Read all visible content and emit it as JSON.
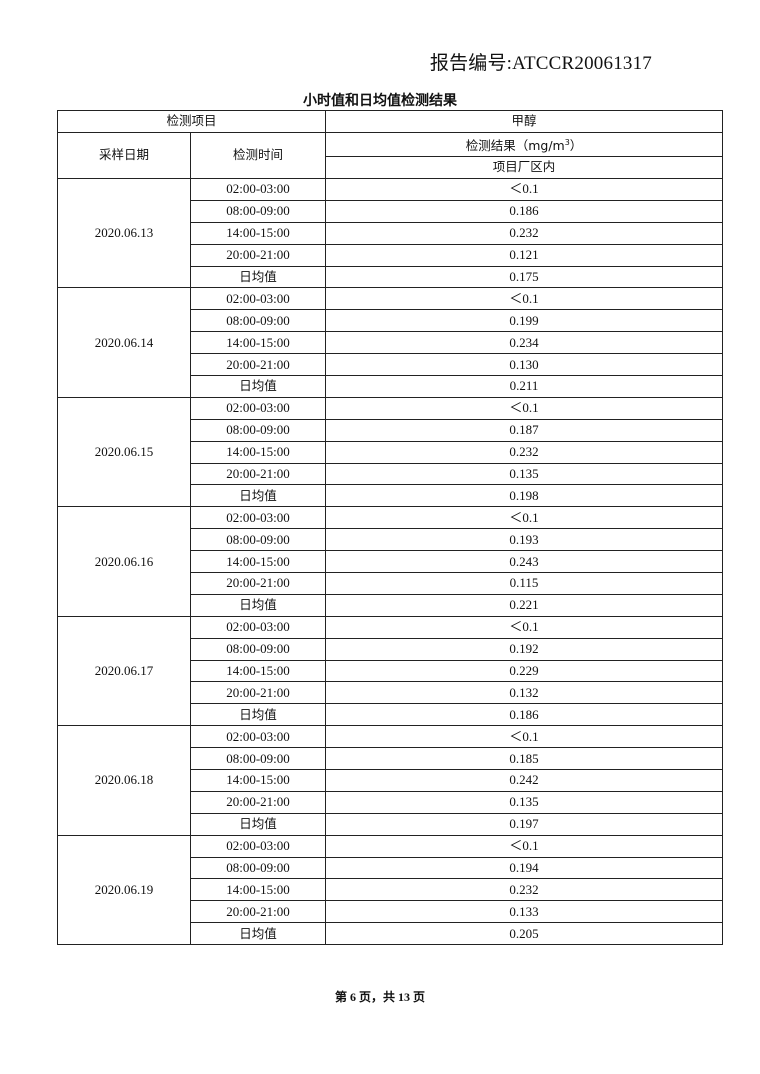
{
  "report_number": "报告编号:ATCCR20061317",
  "table_title": "小时值和日均值检测结果",
  "header": {
    "item_label": "检测项目",
    "substance": "甲醇",
    "sampling_date": "采样日期",
    "test_time": "检测时间",
    "result_label": "检测结果（mg/m",
    "result_unit_sup": "3",
    "result_label_end": "）",
    "location": "项目厂区内"
  },
  "daily_avg_label": "日均值",
  "groups": [
    {
      "date": "2020.06.13",
      "rows": [
        [
          "02:00-03:00",
          "＜0.1"
        ],
        [
          "08:00-09:00",
          "0.186"
        ],
        [
          "14:00-15:00",
          "0.232"
        ],
        [
          "20:00-21:00",
          "0.121"
        ]
      ],
      "avg": "0.175"
    },
    {
      "date": "2020.06.14",
      "rows": [
        [
          "02:00-03:00",
          "＜0.1"
        ],
        [
          "08:00-09:00",
          "0.199"
        ],
        [
          "14:00-15:00",
          "0.234"
        ],
        [
          "20:00-21:00",
          "0.130"
        ]
      ],
      "avg": "0.211"
    },
    {
      "date": "2020.06.15",
      "rows": [
        [
          "02:00-03:00",
          "＜0.1"
        ],
        [
          "08:00-09:00",
          "0.187"
        ],
        [
          "14:00-15:00",
          "0.232"
        ],
        [
          "20:00-21:00",
          "0.135"
        ]
      ],
      "avg": "0.198"
    },
    {
      "date": "2020.06.16",
      "rows": [
        [
          "02:00-03:00",
          "＜0.1"
        ],
        [
          "08:00-09:00",
          "0.193"
        ],
        [
          "14:00-15:00",
          "0.243"
        ],
        [
          "20:00-21:00",
          "0.115"
        ]
      ],
      "avg": "0.221"
    },
    {
      "date": "2020.06.17",
      "rows": [
        [
          "02:00-03:00",
          "＜0.1"
        ],
        [
          "08:00-09:00",
          "0.192"
        ],
        [
          "14:00-15:00",
          "0.229"
        ],
        [
          "20:00-21:00",
          "0.132"
        ]
      ],
      "avg": "0.186"
    },
    {
      "date": "2020.06.18",
      "rows": [
        [
          "02:00-03:00",
          "＜0.1"
        ],
        [
          "08:00-09:00",
          "0.185"
        ],
        [
          "14:00-15:00",
          "0.242"
        ],
        [
          "20:00-21:00",
          "0.135"
        ]
      ],
      "avg": "0.197"
    },
    {
      "date": "2020.06.19",
      "rows": [
        [
          "02:00-03:00",
          "＜0.1"
        ],
        [
          "08:00-09:00",
          "0.194"
        ],
        [
          "14:00-15:00",
          "0.232"
        ],
        [
          "20:00-21:00",
          "0.133"
        ]
      ],
      "avg": "0.205"
    }
  ],
  "footer": "第 6 页，共 13 页"
}
